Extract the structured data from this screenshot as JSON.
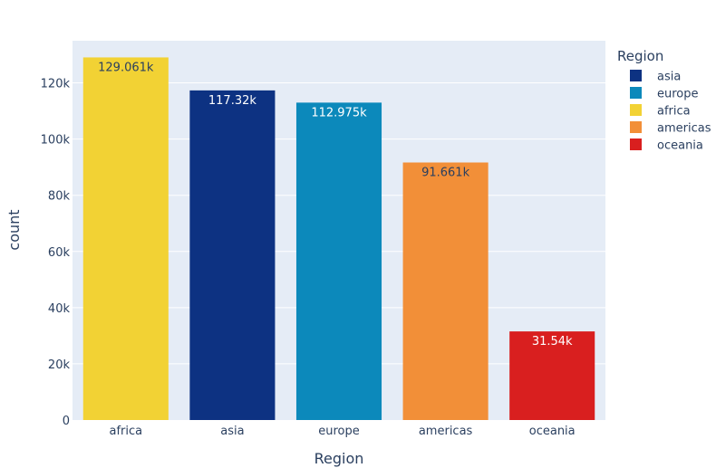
{
  "chart_data": {
    "type": "bar",
    "categories": [
      "africa",
      "asia",
      "europe",
      "americas",
      "oceania"
    ],
    "values": [
      129061,
      117320,
      112975,
      91661,
      31540
    ],
    "data_labels": [
      "129.061k",
      "117.32k",
      "112.975k",
      "91.661k",
      "31.54k"
    ],
    "colors": [
      "#f2d234",
      "#0d3282",
      "#0c89bb",
      "#f28f38",
      "#d91f1f"
    ],
    "label_colors": [
      "#2a3f5f",
      "#ffffff",
      "#ffffff",
      "#2a3f5f",
      "#ffffff"
    ],
    "xlabel": "Region",
    "ylabel": "count",
    "ylim": [
      0,
      135000
    ],
    "yticks": [
      0,
      20000,
      40000,
      60000,
      80000,
      100000,
      120000
    ],
    "ytick_labels": [
      "0",
      "20k",
      "40k",
      "60k",
      "80k",
      "100k",
      "120k"
    ],
    "grid": true,
    "plot_background": "#e5ecf6",
    "legend": {
      "title": "Region",
      "placement": "right",
      "items": [
        {
          "label": "asia",
          "color": "#0d3282"
        },
        {
          "label": "europe",
          "color": "#0c89bb"
        },
        {
          "label": "africa",
          "color": "#f2d234"
        },
        {
          "label": "americas",
          "color": "#f28f38"
        },
        {
          "label": "oceania",
          "color": "#d91f1f"
        }
      ]
    }
  }
}
